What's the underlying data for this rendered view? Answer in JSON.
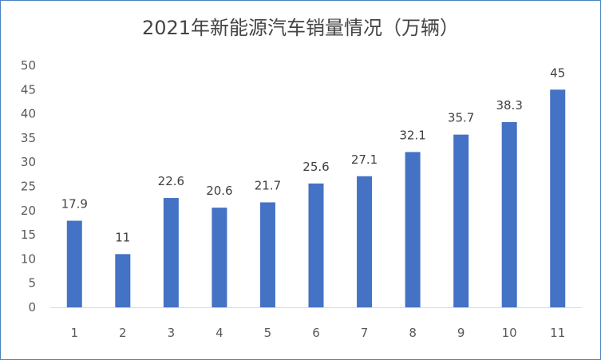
{
  "chart_data": {
    "type": "bar",
    "title": "2021年新能源汽车销量情况（万辆）",
    "categories": [
      "1",
      "2",
      "3",
      "4",
      "5",
      "6",
      "7",
      "8",
      "9",
      "10",
      "11"
    ],
    "values": [
      17.9,
      11,
      22.6,
      20.6,
      21.7,
      25.6,
      27.1,
      32.1,
      35.7,
      38.3,
      45
    ],
    "y_ticks": [
      "0",
      "5",
      "10",
      "15",
      "20",
      "25",
      "30",
      "35",
      "40",
      "45",
      "50"
    ],
    "ylim": [
      0,
      50
    ],
    "xlabel": "",
    "ylabel": "",
    "grid": false,
    "legend": "none",
    "bar_color": "#4472c4",
    "axis_color": "#d9d9d9"
  }
}
